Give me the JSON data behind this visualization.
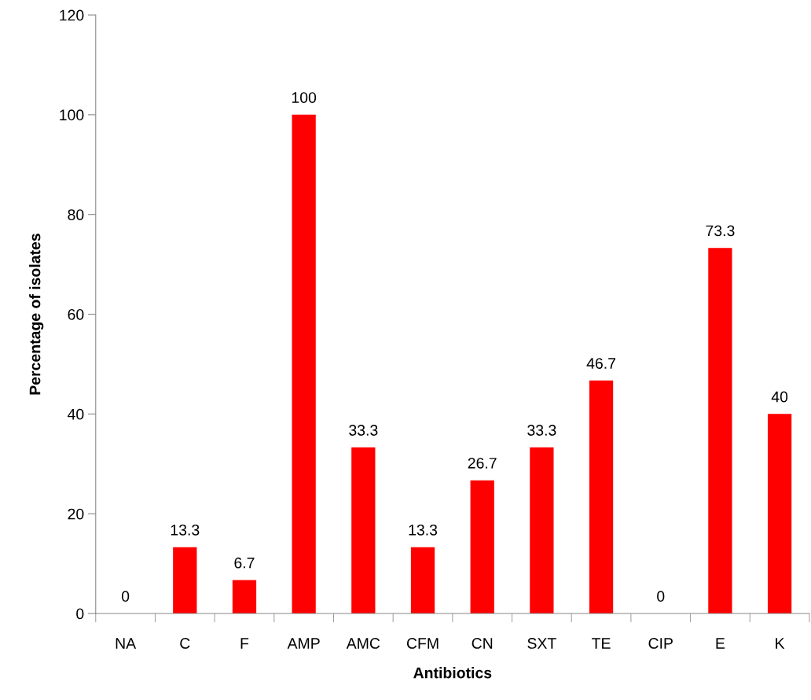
{
  "chart_data": {
    "type": "bar",
    "xlabel": "Antibiotics",
    "ylabel": "Percentage of isolates",
    "categories": [
      "NA",
      "C",
      "F",
      "AMP",
      "AMC",
      "CFM",
      "CN",
      "SXT",
      "TE",
      "CIP",
      "E",
      "K"
    ],
    "values": [
      0,
      13.3,
      6.7,
      100,
      33.3,
      13.3,
      26.7,
      33.3,
      46.7,
      0,
      73.3,
      40
    ],
    "color": "#ff0000",
    "ylim": [
      0,
      120
    ],
    "yticks": [
      0,
      20,
      40,
      60,
      80,
      100,
      120
    ],
    "data_labels": true,
    "grid": false,
    "legend": false
  }
}
